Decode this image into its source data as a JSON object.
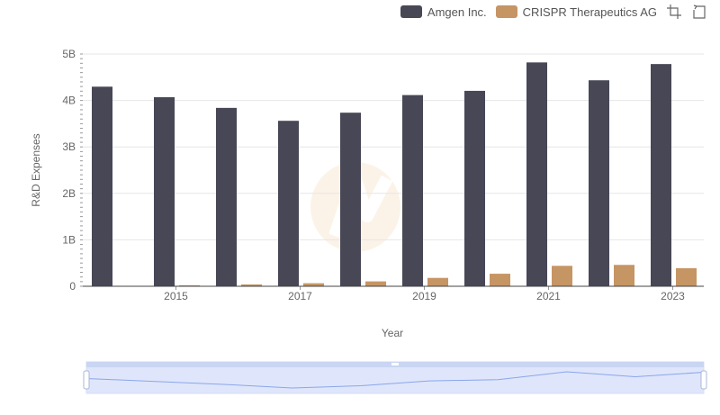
{
  "colors": {
    "amgen": "#474756",
    "crispr": "#c69564",
    "grid": "#e6e6e6",
    "axis": "#666666",
    "slider_fill": "#d6e0fb",
    "slider_line": "#8aa6ea"
  },
  "legend": {
    "series_1": "Amgen Inc.",
    "series_2": "CRISPR Therapeutics AG"
  },
  "toolbar": {
    "zoom_icon": "zoom-select-icon",
    "reset_icon": "zoom-reset-icon"
  },
  "chart_data": {
    "type": "bar",
    "categories": [
      "2014",
      "2015",
      "2016",
      "2017",
      "2018",
      "2019",
      "2020",
      "2021",
      "2022",
      "2023"
    ],
    "x_tick_labels": [
      "2015",
      "2017",
      "2019",
      "2021",
      "2023"
    ],
    "series": [
      {
        "name": "Amgen Inc.",
        "values": [
          4.297,
          4.07,
          3.84,
          3.562,
          3.737,
          4.116,
          4.207,
          4.819,
          4.434,
          4.784
        ]
      },
      {
        "name": "CRISPR Therapeutics AG",
        "values": [
          0.003,
          0.02,
          0.04,
          0.065,
          0.105,
          0.18,
          0.27,
          0.44,
          0.46,
          0.39
        ]
      }
    ],
    "xlabel": "Year",
    "ylabel": "R&D Expenses",
    "y_tick_labels": [
      "0",
      "1B",
      "2B",
      "3B",
      "4B",
      "5B"
    ],
    "ylim": [
      0,
      5
    ],
    "grid": true,
    "legend_position": "top-right"
  }
}
